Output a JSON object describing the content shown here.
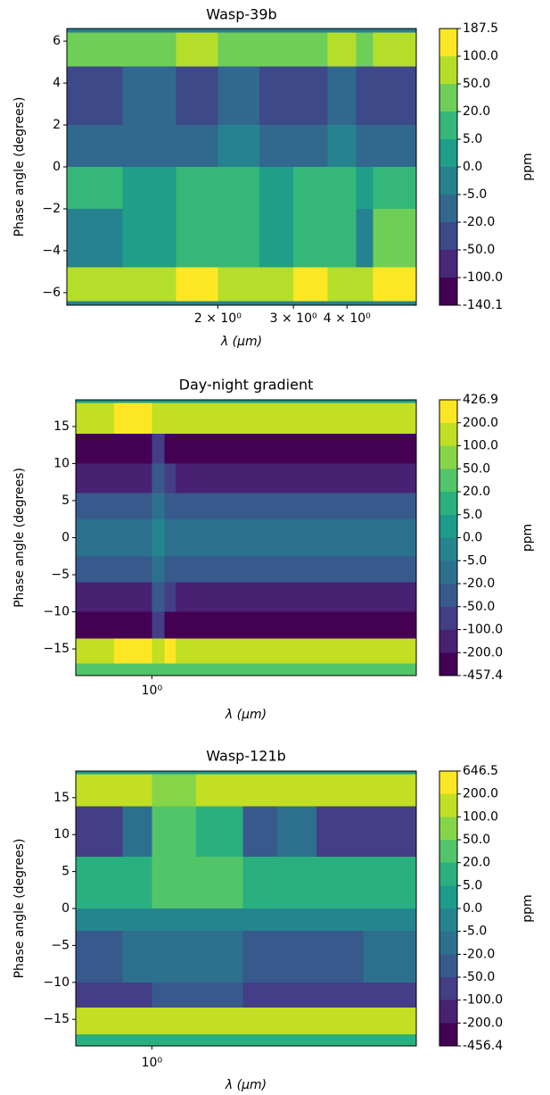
{
  "chart_data": [
    {
      "type": "heatmap",
      "title": "Wasp-39b",
      "xlabel": "λ (μm)",
      "ylabel": "Phase angle (degrees)",
      "log_x": true,
      "xlim": [
        0.89,
        5.8
      ],
      "ylim": [
        -6.6,
        6.6
      ],
      "xticks": [
        {
          "value": 2,
          "label": "2 × 10⁰"
        },
        {
          "value": 3,
          "label": "3 × 10⁰"
        },
        {
          "value": 4,
          "label": "4 × 10⁰"
        }
      ],
      "yticks": [
        {
          "value": -6,
          "label": "−6"
        },
        {
          "value": -4,
          "label": "−4"
        },
        {
          "value": -2,
          "label": "−2"
        },
        0,
        2,
        4,
        6
      ],
      "x": [
        0.89,
        1.2,
        1.6,
        2.0,
        2.5,
        3.0,
        3.6,
        4.2,
        4.6,
        5.8
      ],
      "y": [
        6.6,
        6.4,
        4.8,
        2,
        0,
        -2,
        -4.8,
        -6.4,
        -6.6
      ],
      "values": [
        [
          -3,
          -3,
          -4,
          -3,
          -3,
          -4,
          -3,
          -3,
          -4
        ],
        [
          40,
          30,
          55,
          35,
          45,
          30,
          50,
          25,
          90
        ],
        [
          -25,
          -15,
          -30,
          -10,
          -25,
          -30,
          -8,
          -35,
          -40
        ],
        [
          -10,
          -6,
          -18,
          -4,
          -12,
          -15,
          -3,
          -20,
          -8
        ],
        [
          6,
          3,
          10,
          8,
          4,
          12,
          7,
          3,
          15
        ],
        [
          -4,
          2,
          8,
          12,
          3,
          9,
          10,
          -2,
          25
        ],
        [
          80,
          60,
          110,
          90,
          70,
          130,
          95,
          75,
          160
        ],
        [
          -3,
          -3,
          -4,
          -3,
          -3,
          -4,
          -3,
          -3,
          -4
        ]
      ],
      "colorbar": {
        "label": "ppm",
        "levels": [
          187.5,
          {
            "value": 100,
            "label": "100.0"
          },
          {
            "value": 50,
            "label": "50.0"
          },
          {
            "value": 20,
            "label": "20.0"
          },
          {
            "value": 5,
            "label": "5.0"
          },
          {
            "value": 0,
            "label": "0.0"
          },
          {
            "value": -5,
            "label": "-5.0"
          },
          {
            "value": -20,
            "label": "-20.0"
          },
          {
            "value": -50,
            "label": "-50.0"
          },
          {
            "value": -100,
            "label": "-100.0"
          },
          -140.1
        ],
        "colors": [
          "#fde725",
          "#b5de2b",
          "#6ece58",
          "#35b779",
          "#1f9e89",
          "#26828e",
          "#31688e",
          "#3e4989",
          "#482878",
          "#440154"
        ]
      }
    },
    {
      "type": "heatmap",
      "title": "Day-night gradient",
      "xlabel": "λ (μm)",
      "ylabel": "Phase angle (degrees)",
      "log_x": true,
      "xlim": [
        0.56,
        7.5
      ],
      "ylim": [
        -18.6,
        18.6
      ],
      "xticks": [
        {
          "value": 1,
          "label": "10⁰"
        }
      ],
      "yticks": [
        {
          "value": -15,
          "label": "−15"
        },
        {
          "value": -10,
          "label": "−10"
        },
        {
          "value": -5,
          "label": "−5"
        },
        0,
        5,
        10,
        15
      ],
      "x": [
        0.56,
        0.75,
        1.0,
        1.1,
        1.2,
        1.6,
        2.5,
        4,
        7.5
      ],
      "y": [
        18.6,
        18.2,
        14,
        10,
        6,
        2.5,
        -2.5,
        -6,
        -10,
        -13.6,
        -17,
        -18.6
      ],
      "values": [
        [
          2,
          2,
          2,
          2,
          2,
          2,
          2,
          2
        ],
        [
          180,
          220,
          150,
          190,
          170,
          160,
          140,
          130
        ],
        [
          -250,
          -240,
          -90,
          -220,
          -230,
          -250,
          -260,
          -240
        ],
        [
          -120,
          -110,
          -40,
          -90,
          -110,
          -120,
          -130,
          -110
        ],
        [
          -40,
          -35,
          -15,
          -30,
          -45,
          -40,
          -45,
          -35
        ],
        [
          -8,
          -6,
          -3,
          -7,
          -8,
          -9,
          -10,
          -8
        ],
        [
          -40,
          -35,
          -15,
          -30,
          -45,
          -40,
          -45,
          -35
        ],
        [
          -130,
          -110,
          -45,
          -95,
          -115,
          -120,
          -140,
          -110
        ],
        [
          -260,
          -240,
          -95,
          -230,
          -240,
          -260,
          -270,
          -250
        ],
        [
          190,
          230,
          160,
          200,
          175,
          170,
          150,
          140
        ],
        [
          30,
          35,
          25,
          30,
          25,
          30,
          25,
          20
        ]
      ],
      "colorbar": {
        "label": "ppm",
        "levels": [
          426.9,
          {
            "value": 200,
            "label": "200.0"
          },
          {
            "value": 100,
            "label": "100.0"
          },
          {
            "value": 50,
            "label": "50.0"
          },
          {
            "value": 20,
            "label": "20.0"
          },
          {
            "value": 5,
            "label": "5.0"
          },
          {
            "value": 0,
            "label": "0.0"
          },
          {
            "value": -5,
            "label": "-5.0"
          },
          {
            "value": -20,
            "label": "-20.0"
          },
          {
            "value": -50,
            "label": "-50.0"
          },
          {
            "value": -100,
            "label": "-100.0"
          },
          {
            "value": -200,
            "label": "-200.0"
          },
          -457.4
        ],
        "colors": [
          "#fde725",
          "#c2df23",
          "#86d549",
          "#52c569",
          "#2ab07f",
          "#1e9b8a",
          "#25858e",
          "#2d708e",
          "#38598c",
          "#433e85",
          "#482173",
          "#440154"
        ]
      }
    },
    {
      "type": "heatmap",
      "title": "Wasp-121b",
      "xlabel": "λ (μm)",
      "ylabel": "Phase angle (degrees)",
      "log_x": true,
      "xlim": [
        0.56,
        7.5
      ],
      "ylim": [
        -18.6,
        18.6
      ],
      "xticks": [
        {
          "value": 1,
          "label": "10⁰"
        }
      ],
      "yticks": [
        {
          "value": -15,
          "label": "−15"
        },
        {
          "value": -10,
          "label": "−10"
        },
        {
          "value": -5,
          "label": "−5"
        },
        0,
        5,
        10,
        15
      ],
      "x": [
        0.56,
        0.8,
        1.0,
        1.4,
        2.0,
        2.6,
        3.5,
        5,
        7.5
      ],
      "y": [
        18.6,
        18.2,
        13.8,
        7,
        0,
        -3,
        -10,
        -13.4,
        -17,
        -18.6
      ],
      "values": [
        [
          3,
          3,
          3,
          3,
          3,
          3,
          3,
          3
        ],
        [
          140,
          120,
          90,
          110,
          130,
          150,
          120,
          100
        ],
        [
          -90,
          -20,
          25,
          15,
          -40,
          -15,
          -70,
          -60
        ],
        [
          8,
          15,
          25,
          20,
          10,
          15,
          12,
          10
        ],
        [
          -3,
          -2,
          -4,
          -3,
          -4,
          -3,
          -2,
          -3
        ],
        [
          -25,
          -20,
          -15,
          -20,
          -25,
          -30,
          -25,
          -20
        ],
        [
          -70,
          -55,
          -45,
          -50,
          -60,
          -70,
          -60,
          -55
        ],
        [
          160,
          130,
          100,
          140,
          120,
          170,
          130,
          110
        ],
        [
          8,
          6,
          5,
          7,
          6,
          8,
          6,
          5
        ]
      ],
      "colorbar": {
        "label": "ppm",
        "levels": [
          646.5,
          {
            "value": 200,
            "label": "200.0"
          },
          {
            "value": 100,
            "label": "100.0"
          },
          {
            "value": 50,
            "label": "50.0"
          },
          {
            "value": 20,
            "label": "20.0"
          },
          {
            "value": 5,
            "label": "5.0"
          },
          {
            "value": 0,
            "label": "0.0"
          },
          {
            "value": -5,
            "label": "-5.0"
          },
          {
            "value": -20,
            "label": "-20.0"
          },
          {
            "value": -50,
            "label": "-50.0"
          },
          {
            "value": -100,
            "label": "-100.0"
          },
          {
            "value": -200,
            "label": "-200.0"
          },
          -456.4
        ],
        "colors": [
          "#fde725",
          "#c2df23",
          "#86d549",
          "#52c569",
          "#2ab07f",
          "#1e9b8a",
          "#25858e",
          "#2d708e",
          "#38598c",
          "#433e85",
          "#482173",
          "#440154"
        ]
      }
    }
  ]
}
